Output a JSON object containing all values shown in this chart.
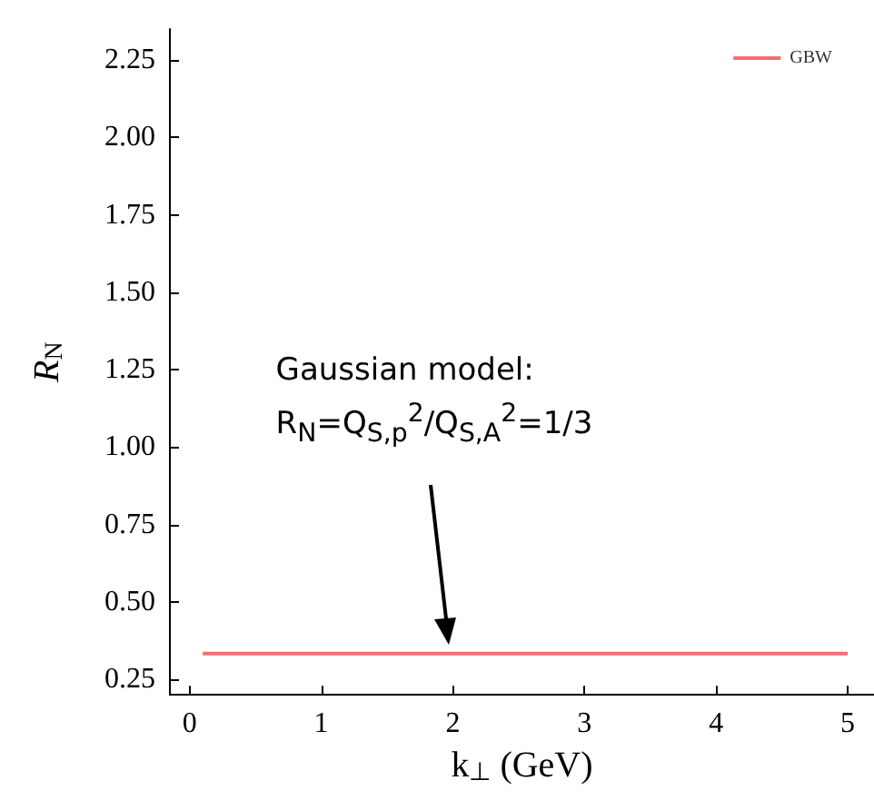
{
  "chart_data": {
    "type": "line",
    "xlabel": "k$_{⊥}$ (GeV)",
    "ylabel": "R$_{N}$",
    "x": [
      0.1,
      5
    ],
    "series": [
      {
        "name": "GBW",
        "color": "#f07070",
        "values": [
          0.333,
          0.333
        ]
      }
    ],
    "xlim": [
      -0.15,
      5.2
    ],
    "xticks": [
      0,
      1,
      2,
      3,
      4,
      5
    ],
    "ylim": [
      0.2,
      2.35
    ],
    "yticks": [
      {
        "value": 0.25,
        "label": "0.25"
      },
      {
        "value": 0.5,
        "label": "0.50"
      },
      {
        "value": 0.75,
        "label": "0.75"
      },
      {
        "value": 1,
        "label": "1.00"
      },
      {
        "value": 1.25,
        "label": "1.25"
      },
      {
        "value": 1.5,
        "label": "1.50"
      },
      {
        "value": 1.75,
        "label": "1.75"
      },
      {
        "value": 2,
        "label": "2.00"
      },
      {
        "value": 2.25,
        "label": "2.25"
      }
    ],
    "annotations": [
      "Gaussian model:\nR$_{N}$=Q$_{S,p}$$^{2}$/Q$_{S,A}$$^{2}$=1/3"
    ],
    "legend": "top right",
    "grid": false,
    "marker": "none",
    "line_style": "solid"
  }
}
